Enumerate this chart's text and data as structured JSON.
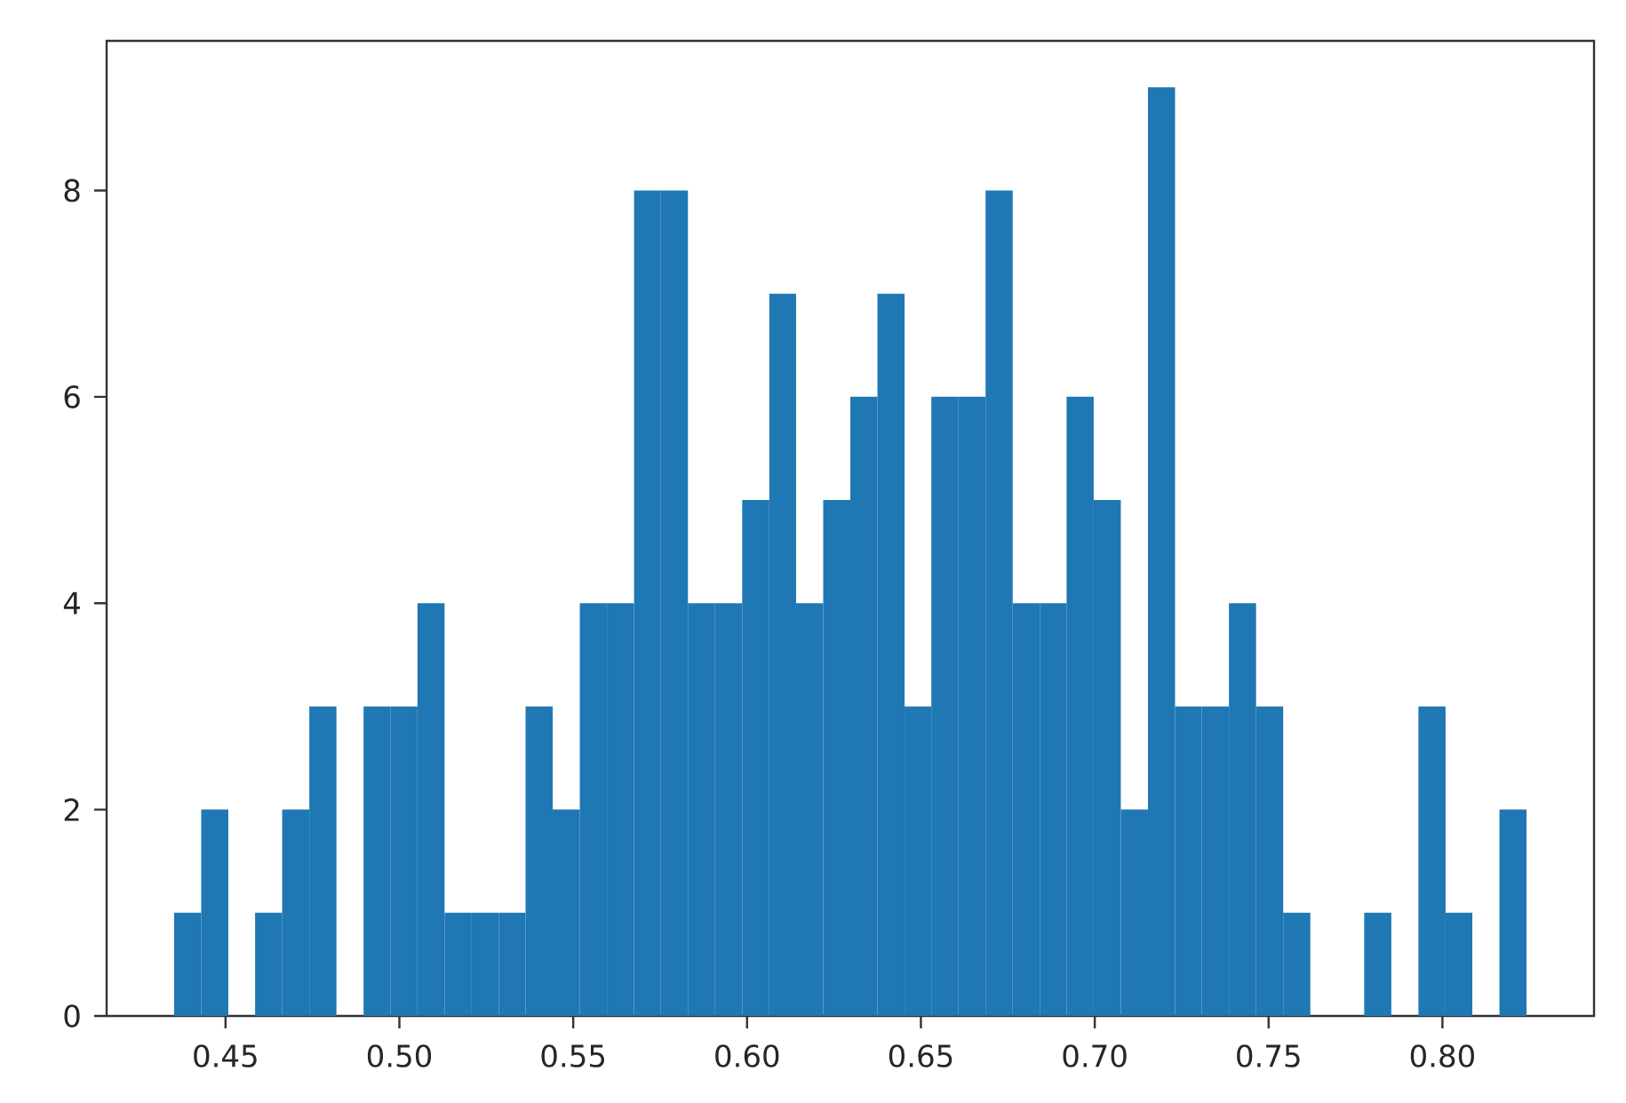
{
  "chart_data": {
    "type": "histogram",
    "bins": [
      0.4352,
      0.443,
      0.4508,
      0.4585,
      0.4663,
      0.4741,
      0.4819,
      0.4897,
      0.4974,
      0.5052,
      0.513,
      0.5208,
      0.5286,
      0.5363,
      0.5441,
      0.5519,
      0.5597,
      0.5675,
      0.5752,
      0.583,
      0.5908,
      0.5986,
      0.6064,
      0.6141,
      0.6219,
      0.6297,
      0.6375,
      0.6453,
      0.653,
      0.6608,
      0.6686,
      0.6764,
      0.6842,
      0.6919,
      0.6997,
      0.7075,
      0.7153,
      0.7231,
      0.7308,
      0.7386,
      0.7464,
      0.7542,
      0.762,
      0.7697,
      0.7775,
      0.7853,
      0.7931,
      0.8009,
      0.8086,
      0.8164,
      0.8242
    ],
    "values": [
      1,
      2,
      0,
      1,
      2,
      3,
      0,
      3,
      3,
      4,
      1,
      1,
      1,
      3,
      2,
      4,
      4,
      8,
      8,
      4,
      4,
      5,
      7,
      4,
      5,
      6,
      7,
      3,
      6,
      6,
      8,
      4,
      4,
      6,
      5,
      2,
      9,
      3,
      3,
      4,
      3,
      1,
      0,
      0,
      1,
      0,
      3,
      1,
      0,
      2
    ],
    "color": "#1f77b4",
    "xlim": [
      0.4158,
      0.8436
    ],
    "ylim": [
      0,
      9.45
    ],
    "xticks": [
      {
        "value": 0.45,
        "label": "0.45"
      },
      {
        "value": 0.5,
        "label": "0.50"
      },
      {
        "value": 0.55,
        "label": "0.55"
      },
      {
        "value": 0.6,
        "label": "0.60"
      },
      {
        "value": 0.65,
        "label": "0.65"
      },
      {
        "value": 0.7,
        "label": "0.70"
      },
      {
        "value": 0.75,
        "label": "0.75"
      },
      {
        "value": 0.8,
        "label": "0.80"
      }
    ],
    "yticks": [
      0,
      2,
      4,
      6,
      8
    ]
  }
}
